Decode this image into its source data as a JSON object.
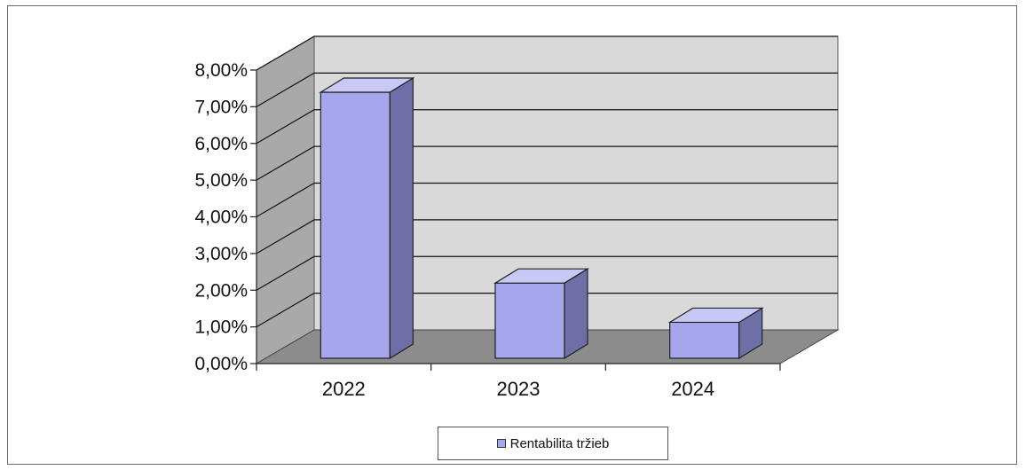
{
  "chart_data": {
    "type": "bar",
    "categories": [
      "2022",
      "2023",
      "2024"
    ],
    "series": [
      {
        "name": "Rentabilita tržieb",
        "values": [
          0.0725,
          0.0205,
          0.0098
        ]
      }
    ],
    "ylim": [
      0,
      0.08
    ],
    "yticks": [
      "0,00%",
      "1,00%",
      "2,00%",
      "3,00%",
      "4,00%",
      "5,00%",
      "6,00%",
      "7,00%",
      "8,00%"
    ],
    "grid": true,
    "legend_position": "bottom",
    "style": "3d-column",
    "colors": {
      "bar_front": "#a6a6ec",
      "bar_top": "#c8c8f7",
      "bar_side": "#6f6fa8",
      "back_wall": "#d9d9d9",
      "side_wall": "#a9a9a9",
      "floor": "#8c8c8c"
    }
  }
}
